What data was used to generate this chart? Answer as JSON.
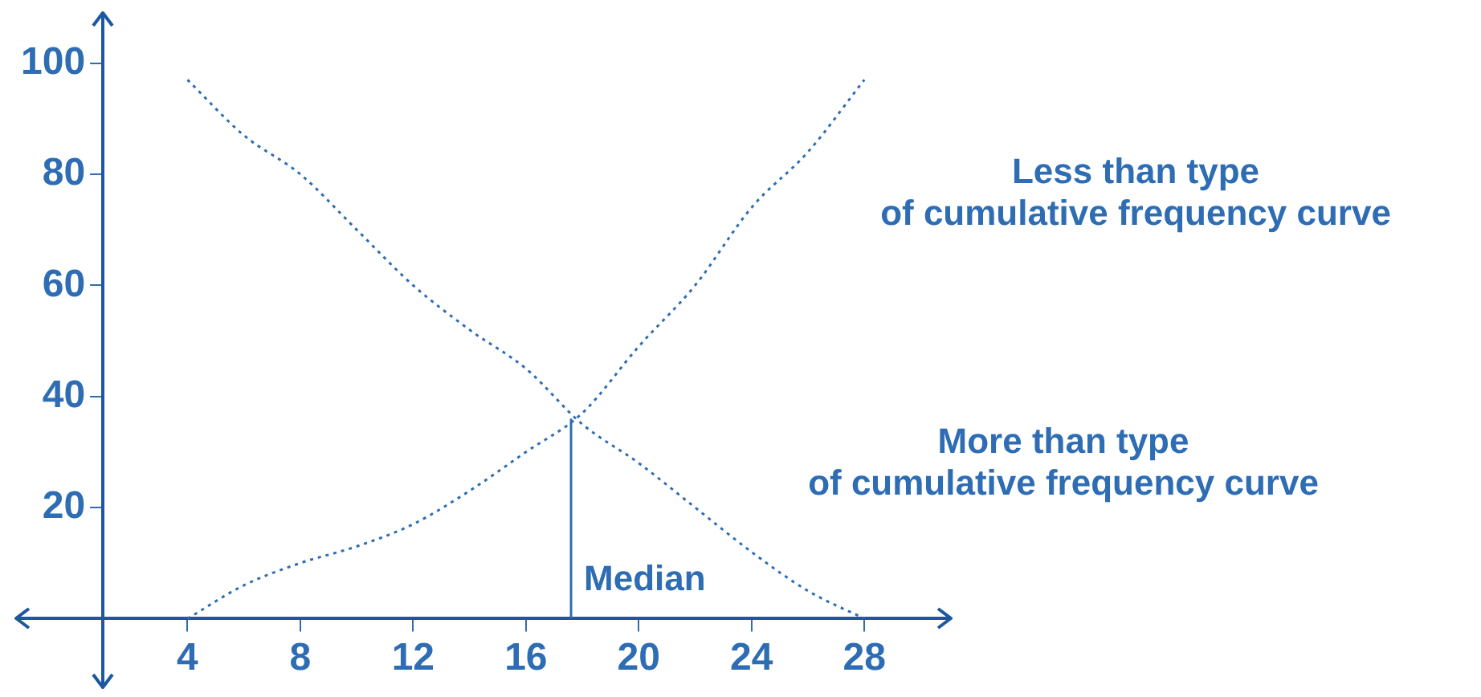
{
  "chart_data": {
    "type": "line",
    "xlim": [
      1,
      30.5
    ],
    "xticks": [
      4,
      8,
      12,
      16,
      20,
      24,
      28
    ],
    "ylim": [
      0,
      105
    ],
    "yticks": [
      20,
      40,
      60,
      80,
      100
    ],
    "grid": false,
    "legend": false,
    "marker": "none",
    "series": [
      {
        "name": "Less than type\nof cumulative frequency curve",
        "color": "#2e6db4",
        "line_style": "dotted",
        "x": [
          4,
          6,
          8,
          10,
          12,
          14,
          16,
          18,
          20,
          22,
          24,
          26,
          28
        ],
        "values": [
          0,
          6,
          10,
          13,
          17,
          23,
          30,
          37,
          49,
          60,
          74,
          84,
          97
        ]
      },
      {
        "name": "More than type\nof cumulative frequency curve",
        "color": "#2e6db4",
        "line_style": "dotted",
        "x": [
          4,
          6,
          8,
          10,
          12,
          14,
          16,
          18,
          20,
          22,
          24,
          26,
          28
        ],
        "values": [
          97,
          87,
          80,
          70,
          60,
          52,
          45,
          35,
          28,
          20,
          12,
          5,
          0
        ]
      },
      {
        "color": "#2e6db4",
        "line_style": "solid",
        "x": [
          17.6,
          17.6
        ],
        "values": [
          0,
          36
        ]
      }
    ],
    "annotations": [
      {
        "text": "Median",
        "x": 17.6,
        "y": 4
      }
    ]
  }
}
